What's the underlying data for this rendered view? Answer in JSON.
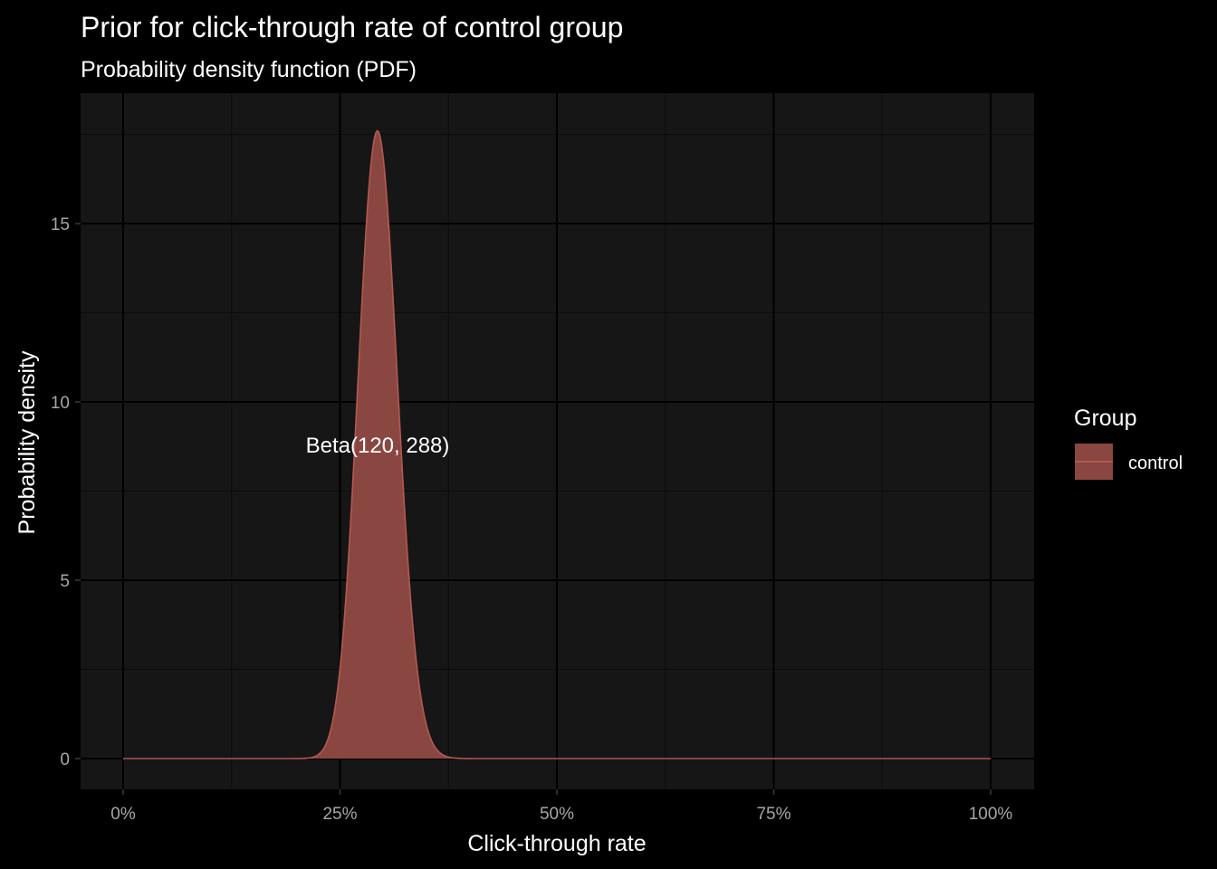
{
  "chart_data": {
    "type": "area",
    "title": "Prior for click-through rate of control group",
    "subtitle": "Probability density function (PDF)",
    "xlabel": "Click-through rate",
    "ylabel": "Probability density",
    "xlim": [
      0,
      1
    ],
    "ylim": [
      0,
      17.6
    ],
    "x_ticks": [
      0,
      0.25,
      0.5,
      0.75,
      1
    ],
    "x_tick_labels": [
      "0%",
      "25%",
      "50%",
      "75%",
      "100%"
    ],
    "y_ticks": [
      0,
      5,
      10,
      15
    ],
    "y_tick_labels": [
      "0",
      "5",
      "10",
      "15"
    ],
    "grid": true,
    "series": [
      {
        "name": "control",
        "distribution": "Beta",
        "alpha": 120,
        "beta": 288,
        "mode": 0.293,
        "peak_density": 17.6,
        "color": "#c0504d"
      }
    ],
    "annotations": [
      {
        "text": "Beta(120, 288)",
        "x": 0.295,
        "y": 8.6
      }
    ],
    "legend": {
      "title": "Group",
      "placement": "right",
      "entries": [
        "control"
      ]
    }
  },
  "colors": {
    "background": "#000000",
    "panel": "#161616",
    "grid_major": "#000000",
    "grid_minor": "#0b0b0b",
    "fill": "#8a4640",
    "line": "#b25a52"
  }
}
